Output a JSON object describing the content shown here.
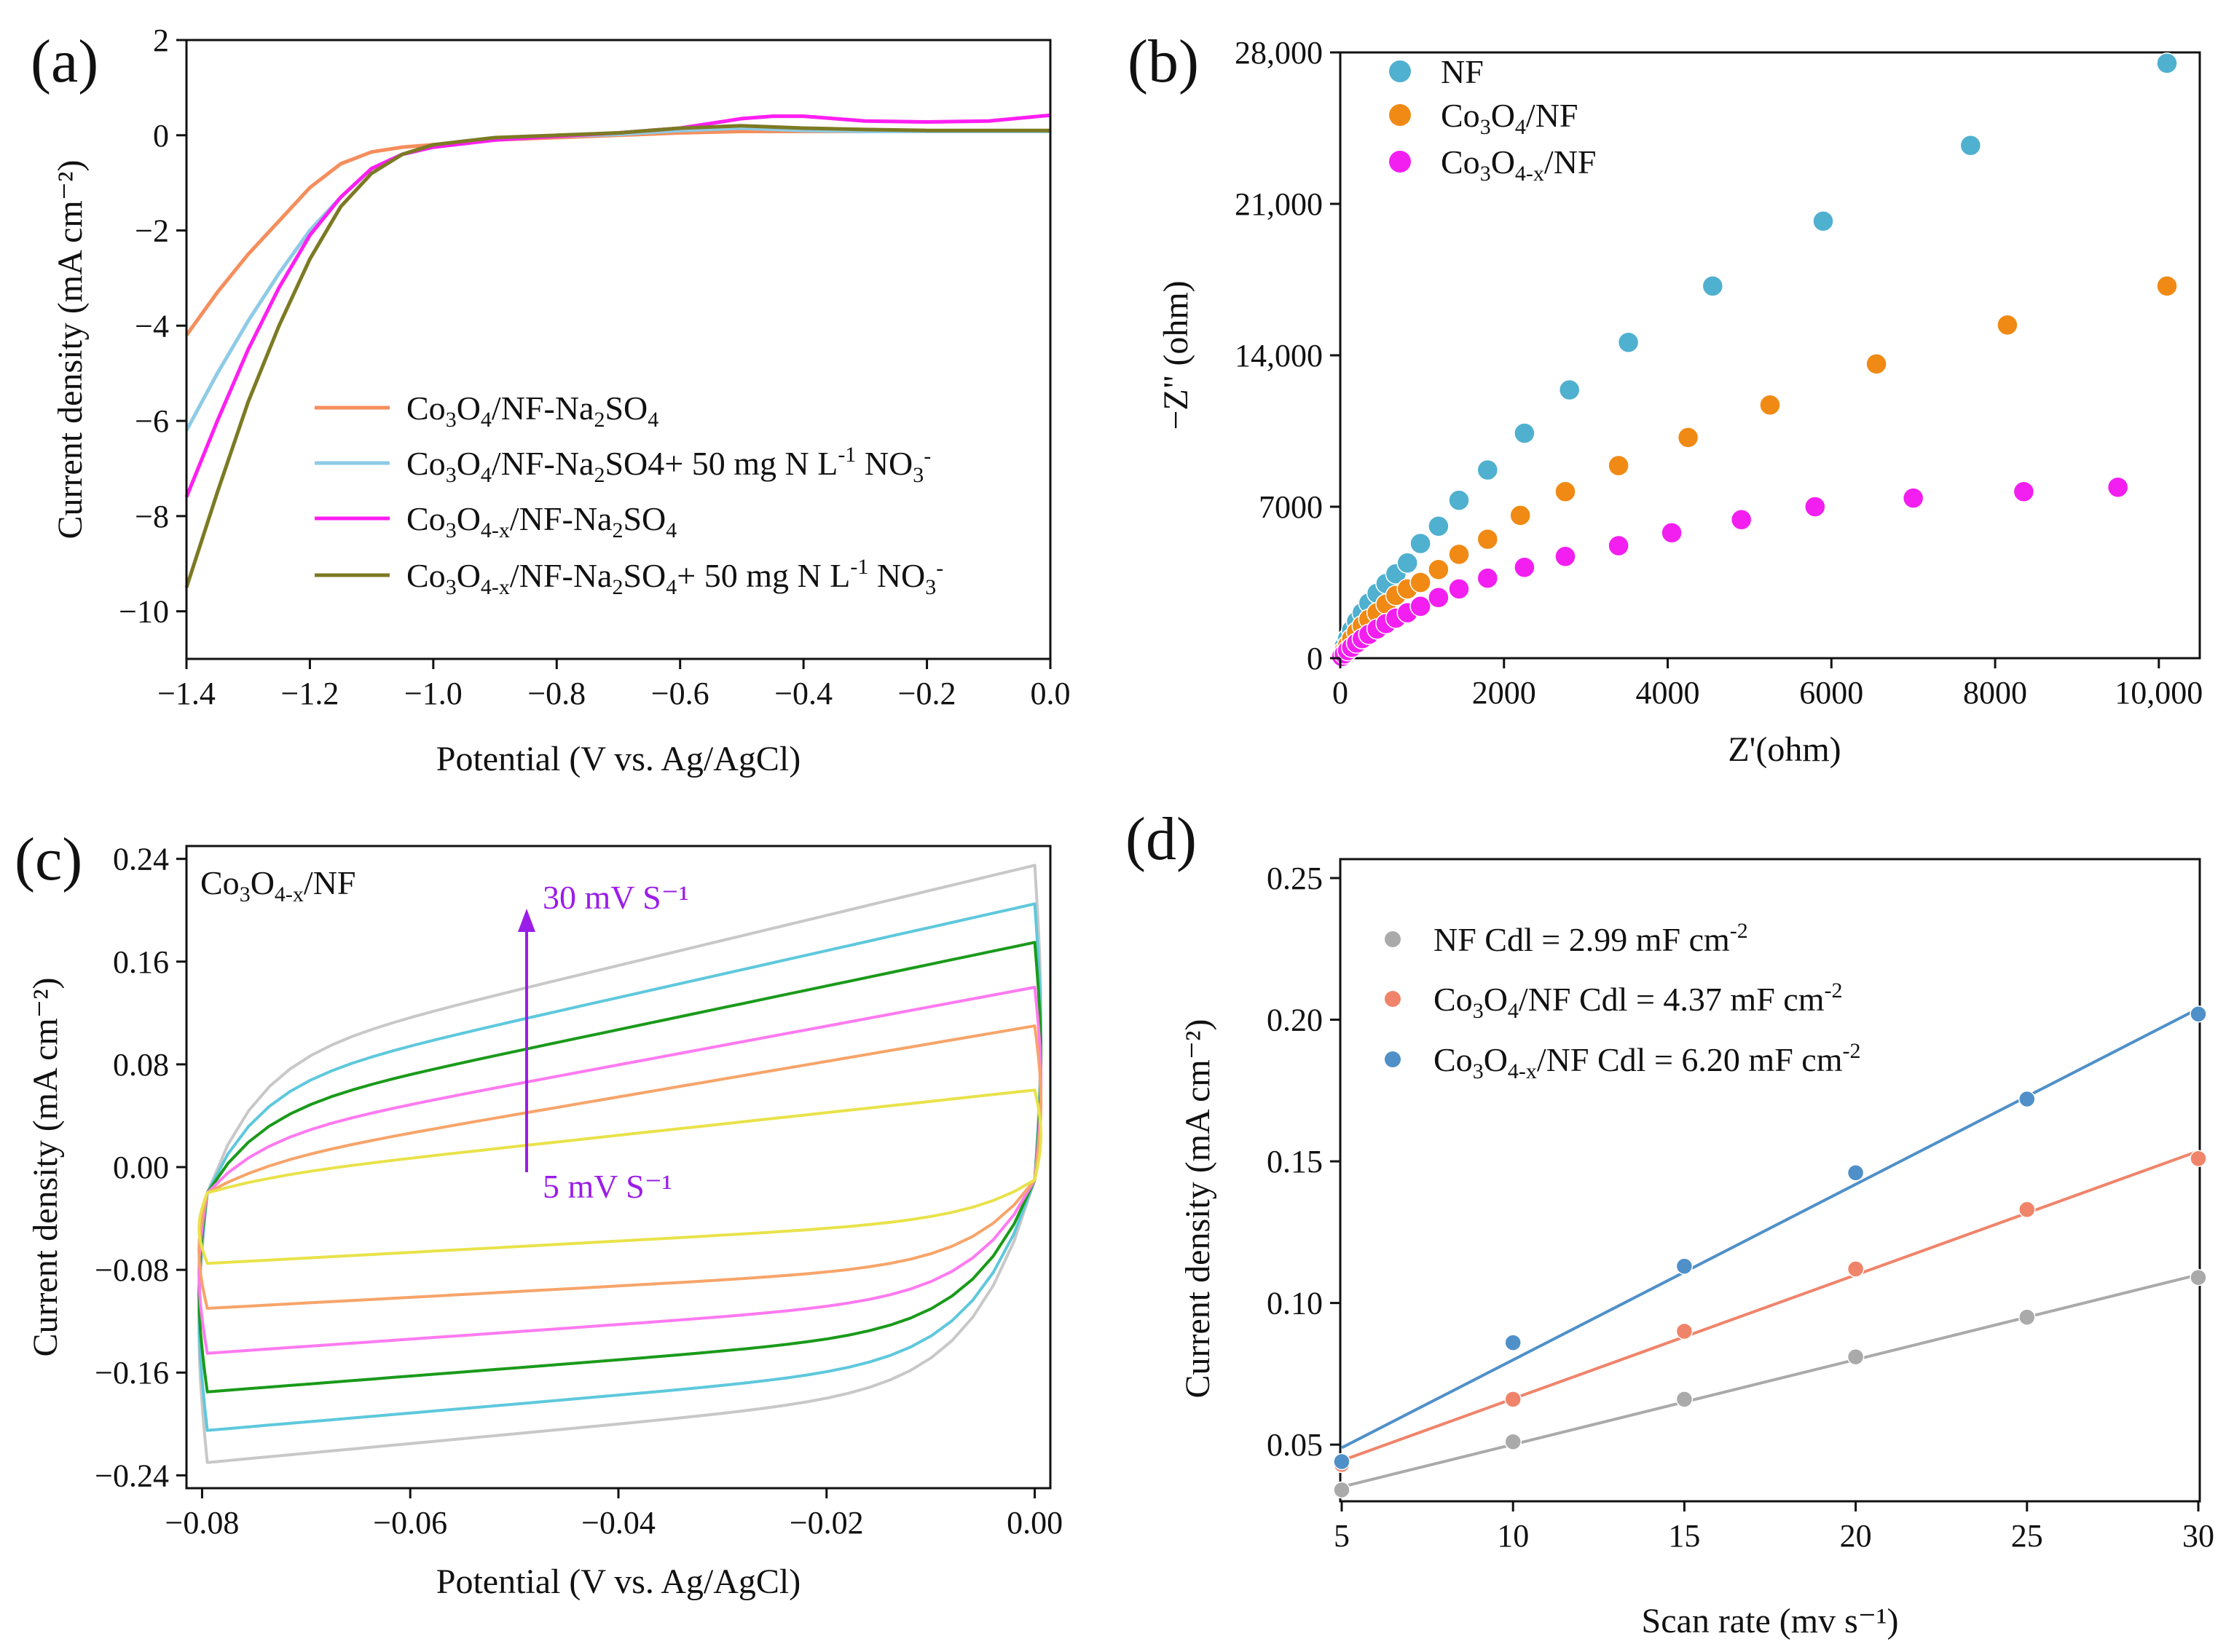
{
  "colors": {
    "orange": "#f58e5c",
    "lightblue": "#8ecbe6",
    "magenta": "#ff1ef2",
    "olive": "#7c7a23",
    "nf_teal": "#4fb0cf",
    "co3o4_orange": "#f08a14",
    "co3o4x_magenta": "#f31ef0",
    "cv_gray": "#c8c8c8",
    "cv_cyan": "#5ec8dc",
    "cv_green": "#1a9a1a",
    "cv_pink": "#ff7af0",
    "cv_orange": "#f7a46a",
    "cv_yellow": "#e9e24a",
    "arrow_purple": "#9b1de8",
    "d_gray": "#aaaaaa",
    "d_orange": "#f0846a",
    "d_blue": "#4f90c8"
  },
  "chart_data": [
    {
      "panel": "(a)",
      "type": "line",
      "xlabel": "Potential (V vs. Ag/AgCl)",
      "ylabel": "Current density (mA cm⁻²)",
      "xlim": [
        -1.4,
        0.0
      ],
      "ylim": [
        -11,
        2
      ],
      "xticks": [
        "−1.4",
        "−1.2",
        "−1.0",
        "−0.8",
        "−0.6",
        "−0.4",
        "−0.2",
        "0.0"
      ],
      "yticks": [
        "2",
        "0",
        "−2",
        "−4",
        "−6",
        "−8",
        "−10"
      ],
      "legend_position": "bottom-right",
      "series": [
        {
          "name": "Co3O4/NF-Na2SO4",
          "color_key": "orange",
          "x": [
            -1.4,
            -1.35,
            -1.3,
            -1.25,
            -1.2,
            -1.15,
            -1.1,
            -1.05,
            -1.0,
            -0.9,
            -0.8,
            -0.7,
            -0.6,
            -0.5,
            -0.4,
            -0.3,
            -0.2,
            -0.1,
            0.0
          ],
          "y": [
            -4.2,
            -3.3,
            -2.5,
            -1.8,
            -1.1,
            -0.6,
            -0.35,
            -0.25,
            -0.2,
            -0.1,
            -0.05,
            0.0,
            0.05,
            0.08,
            0.08,
            0.08,
            0.08,
            0.08,
            0.08
          ]
        },
        {
          "name": "Co3O4/NF-Na2SO4+ 50 mg N L-1 NO3-",
          "color_key": "lightblue",
          "x": [
            -1.4,
            -1.35,
            -1.3,
            -1.25,
            -1.2,
            -1.15,
            -1.1,
            -1.05,
            -1.0,
            -0.9,
            -0.8,
            -0.7,
            -0.6,
            -0.5,
            -0.4,
            -0.3,
            -0.2,
            -0.1,
            0.0
          ],
          "y": [
            -6.2,
            -5.0,
            -3.9,
            -2.9,
            -2.0,
            -1.3,
            -0.7,
            -0.4,
            -0.25,
            -0.1,
            -0.02,
            0.02,
            0.1,
            0.15,
            0.1,
            0.08,
            0.08,
            0.08,
            0.08
          ]
        },
        {
          "name": "Co3O4-x/NF-Na2SO4",
          "color_key": "magenta",
          "x": [
            -1.4,
            -1.35,
            -1.3,
            -1.25,
            -1.2,
            -1.15,
            -1.1,
            -1.05,
            -1.0,
            -0.9,
            -0.8,
            -0.7,
            -0.6,
            -0.5,
            -0.45,
            -0.4,
            -0.3,
            -0.2,
            -0.1,
            0.0
          ],
          "y": [
            -7.6,
            -6.0,
            -4.5,
            -3.2,
            -2.1,
            -1.3,
            -0.7,
            -0.4,
            -0.25,
            -0.1,
            -0.02,
            0.05,
            0.15,
            0.35,
            0.4,
            0.4,
            0.3,
            0.28,
            0.3,
            0.42
          ]
        },
        {
          "name": "Co3O4-x/NF-Na2SO4+ 50 mg N L-1 NO3-",
          "color_key": "olive",
          "x": [
            -1.4,
            -1.35,
            -1.3,
            -1.25,
            -1.2,
            -1.15,
            -1.1,
            -1.05,
            -1.0,
            -0.9,
            -0.8,
            -0.7,
            -0.6,
            -0.5,
            -0.4,
            -0.3,
            -0.2,
            -0.1,
            0.0
          ],
          "y": [
            -9.5,
            -7.5,
            -5.6,
            -4.0,
            -2.6,
            -1.5,
            -0.8,
            -0.4,
            -0.2,
            -0.05,
            0.0,
            0.05,
            0.15,
            0.2,
            0.15,
            0.12,
            0.1,
            0.1,
            0.1
          ]
        }
      ]
    },
    {
      "panel": "(b)",
      "type": "scatter",
      "xlabel": "Z'(ohm)",
      "ylabel": "−Z\" (ohm)",
      "xlim": [
        0,
        10500
      ],
      "ylim": [
        0,
        28000
      ],
      "xticks": [
        "0",
        "2000",
        "4000",
        "6000",
        "8000",
        "10,000"
      ],
      "yticks": [
        "0",
        "7000",
        "14,000",
        "21,000",
        "28,000"
      ],
      "legend_position": "top-left",
      "series": [
        {
          "name": "NF",
          "color_key": "nf_teal",
          "x": [
            20,
            50,
            90,
            140,
            200,
            270,
            350,
            450,
            560,
            680,
            820,
            980,
            1200,
            1450,
            1800,
            2250,
            2800,
            3520,
            4550,
            5900,
            7700,
            10100
          ],
          "y": [
            250,
            550,
            900,
            1300,
            1700,
            2100,
            2550,
            3000,
            3450,
            3900,
            4400,
            5300,
            6100,
            7300,
            8700,
            10400,
            12400,
            14600,
            17200,
            20200,
            23700,
            27500
          ]
        },
        {
          "name": "Co3O4/NF",
          "color_key": "co3o4_orange",
          "x": [
            20,
            50,
            90,
            140,
            200,
            270,
            350,
            450,
            560,
            680,
            820,
            980,
            1200,
            1450,
            1800,
            2200,
            2750,
            3400,
            4250,
            5250,
            6550,
            8150,
            10100
          ],
          "y": [
            150,
            350,
            600,
            900,
            1200,
            1500,
            1800,
            2100,
            2500,
            2900,
            3200,
            3500,
            4100,
            4800,
            5500,
            6600,
            7700,
            8900,
            10200,
            11700,
            13600,
            15400,
            17200
          ]
        },
        {
          "name": "Co3O4-x/NF",
          "color_key": "co3o4x_magenta",
          "x": [
            20,
            50,
            90,
            140,
            200,
            270,
            350,
            450,
            560,
            680,
            820,
            980,
            1200,
            1450,
            1800,
            2250,
            2750,
            3400,
            4050,
            4900,
            5800,
            7000,
            8350,
            9500
          ],
          "y": [
            80,
            200,
            350,
            500,
            700,
            900,
            1100,
            1350,
            1600,
            1850,
            2100,
            2400,
            2800,
            3200,
            3700,
            4200,
            4700,
            5200,
            5800,
            6400,
            7000,
            7400,
            7700,
            7900
          ]
        }
      ]
    },
    {
      "panel": "(c)",
      "type": "line",
      "xlabel": "Potential (V vs. Ag/AgCl)",
      "ylabel": "Current density (mA cm⁻²)",
      "xlim": [
        -0.0815,
        0.0015
      ],
      "ylim": [
        -0.25,
        0.25
      ],
      "xticks": [
        "−0.08",
        "−0.06",
        "−0.04",
        "−0.02",
        "0.00"
      ],
      "yticks": [
        "0.24",
        "0.16",
        "0.08",
        "0.00",
        "−0.08",
        "−0.16",
        "−0.24"
      ],
      "annotation_label": "Co3O4-x/NF",
      "arrow_top_label": "30 mV S⁻¹",
      "arrow_bottom_label": "5 mV S⁻¹",
      "cv_loops": [
        {
          "scan_rate": 5,
          "color_key": "cv_yellow",
          "upper_left": -0.01,
          "upper_right": 0.06,
          "lower_left": -0.075,
          "lower_right": -0.04
        },
        {
          "scan_rate": 10,
          "color_key": "cv_orange",
          "upper_left": 0.0,
          "upper_right": 0.11,
          "lower_left": -0.11,
          "lower_right": -0.075
        },
        {
          "scan_rate": 15,
          "color_key": "cv_pink",
          "upper_left": 0.02,
          "upper_right": 0.14,
          "lower_left": -0.145,
          "lower_right": -0.1
        },
        {
          "scan_rate": 20,
          "color_key": "cv_green",
          "upper_left": 0.04,
          "upper_right": 0.175,
          "lower_left": -0.175,
          "lower_right": -0.125
        },
        {
          "scan_rate": 25,
          "color_key": "cv_cyan",
          "upper_left": 0.06,
          "upper_right": 0.205,
          "lower_left": -0.205,
          "lower_right": -0.15
        },
        {
          "scan_rate": 30,
          "color_key": "cv_gray",
          "upper_left": 0.08,
          "upper_right": 0.235,
          "lower_left": -0.23,
          "lower_right": -0.17
        }
      ]
    },
    {
      "panel": "(d)",
      "type": "scatter",
      "xlabel": "Scan rate (mv s⁻¹)",
      "ylabel": "Current density (mA cm⁻²)",
      "xlim": [
        5,
        30
      ],
      "ylim": [
        0.03,
        0.25
      ],
      "xticks": [
        "5",
        "10",
        "15",
        "20",
        "25",
        "30"
      ],
      "yticks": [
        "0.25",
        "0.20",
        "0.15",
        "0.10",
        "0.05"
      ],
      "legend_position": "top-left",
      "series": [
        {
          "name": "NF Cdl = 2.99 mF cm-2",
          "color_key": "d_gray",
          "x": [
            5,
            10,
            15,
            20,
            25,
            30
          ],
          "y": [
            0.034,
            0.051,
            0.066,
            0.081,
            0.095,
            0.109
          ],
          "fit": {
            "slope": 0.002996,
            "intercept": 0.0201
          }
        },
        {
          "name": "Co3O4/NF Cdl = 4.37 mF cm-2",
          "color_key": "d_orange",
          "x": [
            5,
            10,
            15,
            20,
            25,
            30
          ],
          "y": [
            0.043,
            0.066,
            0.09,
            0.112,
            0.133,
            0.151
          ],
          "fit": {
            "slope": 0.00437,
            "intercept": 0.0225
          }
        },
        {
          "name": "Co3O4-x/NF Cdl = 6.20 mF cm-2",
          "color_key": "d_blue",
          "x": [
            5,
            10,
            15,
            20,
            25,
            30
          ],
          "y": [
            0.044,
            0.086,
            0.113,
            0.146,
            0.172,
            0.202
          ],
          "fit": {
            "slope": 0.0062,
            "intercept": 0.0179
          }
        }
      ]
    }
  ]
}
